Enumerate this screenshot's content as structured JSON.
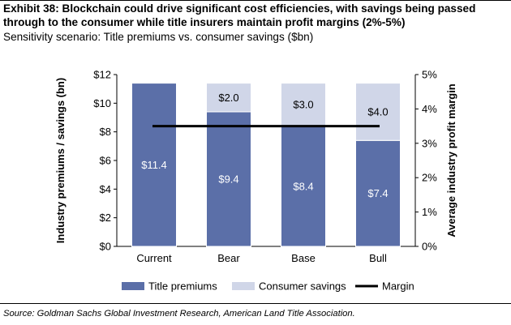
{
  "header": {
    "title": "Exhibit 38: Blockchain could drive significant cost efficiencies, with savings being passed through to the consumer while title insurers maintain profit margins (2%-5%)",
    "subtitle": "Sensitivity scenario: Title premiums vs. consumer savings ($bn)"
  },
  "footer": {
    "source": "Source: Goldman Sachs Global Investment Research, American Land Title Association."
  },
  "chart_data": {
    "type": "bar",
    "stacked": true,
    "categories": [
      "Current",
      "Bear",
      "Base",
      "Bull"
    ],
    "series": [
      {
        "name": "Title premiums",
        "values": [
          11.4,
          9.4,
          8.4,
          7.4
        ],
        "labels": [
          "$11.4",
          "$9.4",
          "$8.4",
          "$7.4"
        ],
        "color": "#5b6fa8",
        "label_color": "#ffffff"
      },
      {
        "name": "Consumer savings",
        "values": [
          0,
          2.0,
          3.0,
          4.0
        ],
        "labels": [
          "",
          "$2.0",
          "$3.0",
          "$4.0"
        ],
        "color": "#d0d6e8",
        "label_color": "#000000"
      }
    ],
    "line": {
      "name": "Margin",
      "value": 0.035,
      "color": "#000000"
    },
    "ylabel": "Industry premiums / savings (bn)",
    "y2label": "Average industry profit margin",
    "ylim": [
      0,
      12
    ],
    "y2lim": [
      0,
      0.05
    ],
    "yticks": [
      "$0",
      "$2",
      "$4",
      "$6",
      "$8",
      "$10",
      "$12"
    ],
    "y2ticks": [
      "0%",
      "1%",
      "2%",
      "3%",
      "4%",
      "5%"
    ],
    "grid": false,
    "legend_position": "bottom"
  }
}
